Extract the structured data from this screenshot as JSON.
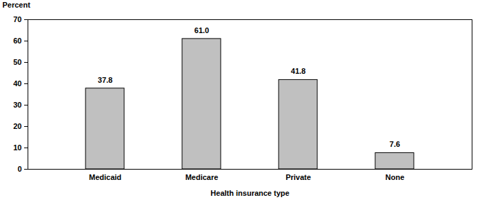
{
  "chart_data": {
    "type": "bar",
    "categories": [
      "Medicaid",
      "Medicare",
      "Private",
      "None"
    ],
    "values": [
      37.8,
      61.0,
      41.8,
      7.6
    ],
    "value_labels": [
      "37.8",
      "61.0",
      "41.8",
      "7.6"
    ],
    "data_labels": true,
    "color": "#c0c0c0",
    "x_label": "Health insurance type",
    "y_label": "Percent",
    "ylim": [
      0,
      70
    ],
    "yticks": [
      0,
      10,
      20,
      30,
      40,
      50,
      60,
      70
    ],
    "grid": false
  }
}
